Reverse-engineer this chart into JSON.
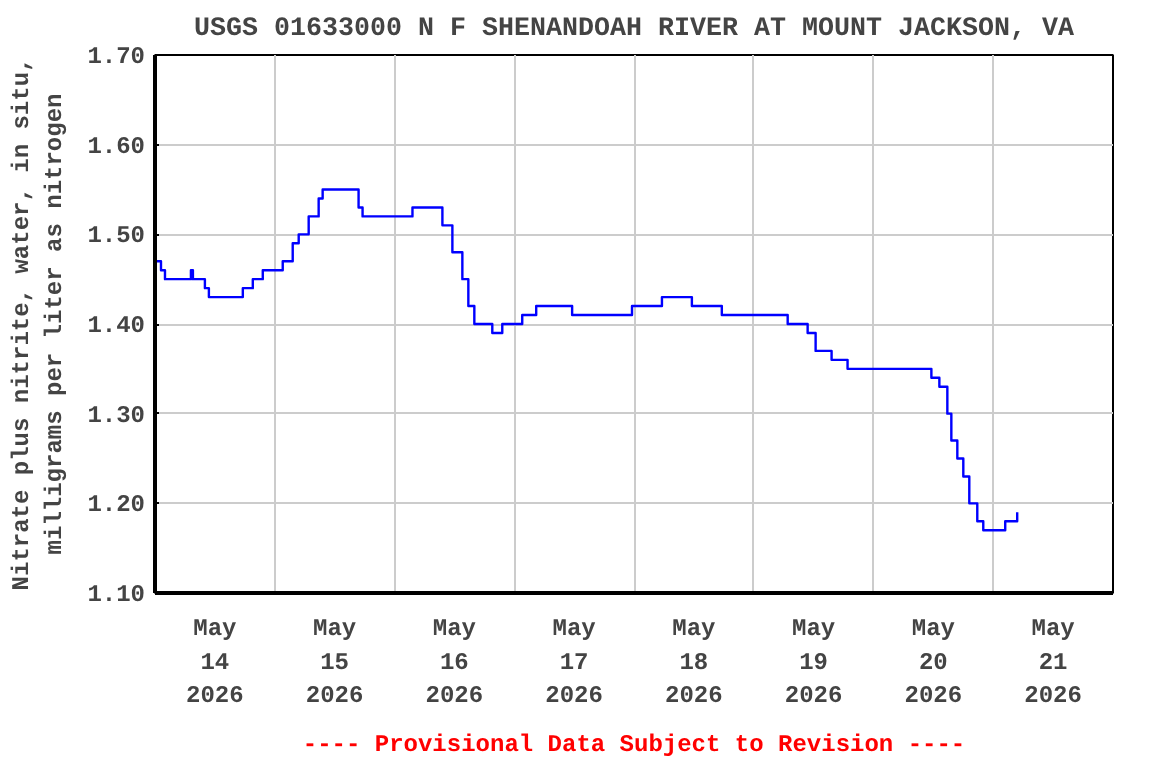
{
  "chart_data": {
    "type": "step",
    "title": "USGS 01633000 N F SHENANDOAH RIVER AT MOUNT JACKSON, VA",
    "ylabel": "Nitrate plus nitrite, water, in situ,\nmilligrams per liter as nitrogen",
    "annotations": [
      "---- Provisional Data Subject to Revision ----"
    ],
    "x": [
      "2026-05-14T00:00",
      "2026-05-14T01:12",
      "2026-05-14T02:00",
      "2026-05-14T06:48",
      "2026-05-14T07:12",
      "2026-05-14T07:36",
      "2026-05-14T10:00",
      "2026-05-14T10:48",
      "2026-05-14T15:36",
      "2026-05-14T17:36",
      "2026-05-14T19:36",
      "2026-05-14T21:36",
      "2026-05-15T00:24",
      "2026-05-15T01:36",
      "2026-05-15T03:36",
      "2026-05-15T04:48",
      "2026-05-15T06:48",
      "2026-05-15T08:48",
      "2026-05-15T09:36",
      "2026-05-15T15:36",
      "2026-05-15T16:48",
      "2026-05-15T17:36",
      "2026-05-15T23:36",
      "2026-05-16T03:36",
      "2026-05-16T07:36",
      "2026-05-16T09:36",
      "2026-05-16T11:36",
      "2026-05-16T13:36",
      "2026-05-16T14:48",
      "2026-05-16T16:00",
      "2026-05-16T17:36",
      "2026-05-16T19:36",
      "2026-05-16T21:36",
      "2026-05-17T00:24",
      "2026-05-17T01:36",
      "2026-05-17T04:24",
      "2026-05-17T09:36",
      "2026-05-17T11:36",
      "2026-05-17T19:36",
      "2026-05-17T23:36",
      "2026-05-18T05:36",
      "2026-05-18T11:36",
      "2026-05-18T17:36",
      "2026-05-19T03:36",
      "2026-05-19T06:48",
      "2026-05-19T10:48",
      "2026-05-19T12:24",
      "2026-05-19T15:36",
      "2026-05-19T18:48",
      "2026-05-19T21:36",
      "2026-05-20T10:24",
      "2026-05-20T11:36",
      "2026-05-20T13:12",
      "2026-05-20T14:48",
      "2026-05-20T15:36",
      "2026-05-20T16:48",
      "2026-05-20T18:00",
      "2026-05-20T19:12",
      "2026-05-20T20:48",
      "2026-05-20T22:00",
      "2026-05-21T01:12",
      "2026-05-21T02:24",
      "2026-05-21T04:48"
    ],
    "series": [
      {
        "color": "#0000ff",
        "values": [
          1.47,
          1.46,
          1.45,
          1.45,
          1.46,
          1.45,
          1.44,
          1.43,
          1.43,
          1.44,
          1.45,
          1.46,
          1.46,
          1.47,
          1.49,
          1.5,
          1.52,
          1.54,
          1.55,
          1.55,
          1.53,
          1.52,
          1.52,
          1.53,
          1.53,
          1.51,
          1.48,
          1.45,
          1.42,
          1.4,
          1.4,
          1.39,
          1.4,
          1.4,
          1.41,
          1.42,
          1.42,
          1.41,
          1.41,
          1.42,
          1.43,
          1.42,
          1.41,
          1.41,
          1.4,
          1.39,
          1.37,
          1.36,
          1.35,
          1.35,
          1.35,
          1.34,
          1.33,
          1.3,
          1.27,
          1.25,
          1.23,
          1.2,
          1.18,
          1.17,
          1.17,
          1.18,
          1.19
        ]
      }
    ],
    "xlim": [
      "2026-05-14T00:00",
      "2026-05-22T00:00"
    ],
    "xticks": [
      {
        "value": "2026-05-14T12:00",
        "label": "May\n14\n2026"
      },
      {
        "value": "2026-05-15T00:00",
        "label": null
      },
      {
        "value": "2026-05-15T12:00",
        "label": "May\n15\n2026"
      },
      {
        "value": "2026-05-16T00:00",
        "label": null
      },
      {
        "value": "2026-05-16T12:00",
        "label": "May\n16\n2026"
      },
      {
        "value": "2026-05-17T00:00",
        "label": null
      },
      {
        "value": "2026-05-17T12:00",
        "label": "May\n17\n2026"
      },
      {
        "value": "2026-05-18T00:00",
        "label": null
      },
      {
        "value": "2026-05-18T12:00",
        "label": "May\n18\n2026"
      },
      {
        "value": "2026-05-19T00:00",
        "label": null
      },
      {
        "value": "2026-05-19T12:00",
        "label": "May\n19\n2026"
      },
      {
        "value": "2026-05-20T00:00",
        "label": null
      },
      {
        "value": "2026-05-20T12:00",
        "label": "May\n20\n2026"
      },
      {
        "value": "2026-05-21T00:00",
        "label": null
      },
      {
        "value": "2026-05-21T12:00",
        "label": "May\n21\n2026"
      }
    ],
    "ylim": [
      1.1,
      1.7
    ],
    "yticks": [
      {
        "value": 1.1,
        "label": "1.10"
      },
      {
        "value": 1.2,
        "label": "1.20"
      },
      {
        "value": 1.3,
        "label": "1.30"
      },
      {
        "value": 1.4,
        "label": "1.40"
      },
      {
        "value": 1.5,
        "label": "1.50"
      },
      {
        "value": 1.6,
        "label": "1.60"
      },
      {
        "value": 1.7,
        "label": "1.70"
      }
    ],
    "grid": true
  }
}
